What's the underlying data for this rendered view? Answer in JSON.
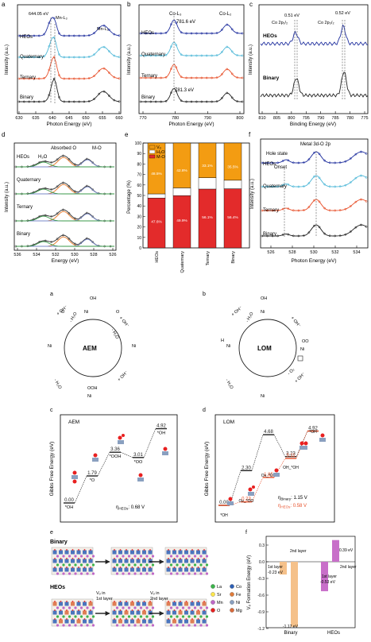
{
  "colors": {
    "heo": "#1f2f9e",
    "quaternary": "#4fb8d8",
    "ternary": "#e8502a",
    "binary": "#222222",
    "vo": "#f39c12",
    "h2o": "#ffffff",
    "mo": "#e32b2b",
    "mech_black": "#222222",
    "mech_orange": "#e8502a"
  },
  "panel_a": {
    "letter": "a",
    "xlabel": "Photon Energy (eV)",
    "ylabel": "Intensity (a.u.)",
    "xlim": [
      630,
      660
    ],
    "xticks": [
      "630",
      "635",
      "640",
      "645",
      "650",
      "655",
      "660"
    ],
    "annotations": {
      "peak": "644.05 eV",
      "l3": "Mn-L₃",
      "l2": "Mn-L₂"
    },
    "labels": [
      "HEOs",
      "Quaternary",
      "Ternary",
      "Binary"
    ]
  },
  "panel_b": {
    "letter": "b",
    "xlabel": "Photon Energy (eV)",
    "ylabel": "Intensity (a.u.)",
    "xlim": [
      770,
      800
    ],
    "xticks": [
      "770",
      "780",
      "790",
      "800"
    ],
    "annotations": {
      "l3": "Co-L₃",
      "l2": "Co-L₂",
      "heo_peak": "781.6 eV",
      "bin_peak": "781.3 eV"
    },
    "labels": [
      "HEOs",
      "Quaternary",
      "Ternary",
      "Binary"
    ]
  },
  "panel_c": {
    "letter": "c",
    "xlabel": "Binding Energy (eV)",
    "ylabel": "Intensity (a.u.)",
    "xlim": [
      810,
      775
    ],
    "xticks": [
      "810",
      "805",
      "800",
      "795",
      "790",
      "785",
      "780",
      "775"
    ],
    "annotations": {
      "s1": "0.51 eV",
      "s2": "0.52 eV",
      "p1": "Co 2p₁/₂",
      "p2": "Co 2p₃/₂"
    },
    "labels": [
      "HEOs",
      "Binary"
    ]
  },
  "panel_d": {
    "letter": "d",
    "xlabel": "Energy (eV)",
    "ylabel": "Intensity (a.u.)",
    "xlim": [
      536,
      526
    ],
    "xticks": [
      "536",
      "534",
      "532",
      "530",
      "528",
      "526"
    ],
    "annotations": {
      "ao": "Absorbed O",
      "mo": "M-O",
      "h2o": "H₂O"
    },
    "labels": [
      "HEOs",
      "Quaternary",
      "Ternary",
      "Binary"
    ]
  },
  "panel_e": {
    "letter": "e",
    "ylabel": "Percentage (%)",
    "yticks": [
      "0",
      "10",
      "20",
      "30",
      "40",
      "50",
      "60",
      "70",
      "80",
      "90",
      "100"
    ],
    "legend": [
      "Vₒ",
      "H₂O",
      "M-O"
    ]
  },
  "panel_f": {
    "letter": "f",
    "xlabel": "Photon Energy (eV)",
    "ylabel": "Intensity (a.u.)",
    "xlim": [
      525,
      535
    ],
    "xticks": [
      "526",
      "528",
      "530",
      "532",
      "534"
    ],
    "annotations": {
      "main": "Metal 3d-O 2p",
      "hole": "Hole state",
      "onset": "Onset"
    },
    "labels": [
      "HEOs",
      "Quaternary",
      "Ternary",
      "Binary"
    ]
  },
  "chart_data": [
    {
      "type": "line",
      "title": "",
      "xlabel": "Photon Energy (eV)",
      "ylabel": "Intensity (a.u.)",
      "xlim": [
        630,
        660
      ],
      "series": [
        {
          "name": "HEOs"
        },
        {
          "name": "Quaternary"
        },
        {
          "name": "Ternary"
        },
        {
          "name": "Binary"
        }
      ],
      "peaks": {
        "Mn-L3": 644.05,
        "Mn-L2": 655
      }
    },
    {
      "type": "line",
      "title": "",
      "xlabel": "Photon Energy (eV)",
      "ylabel": "Intensity (a.u.)",
      "xlim": [
        770,
        800
      ],
      "series": [
        {
          "name": "HEOs"
        },
        {
          "name": "Quaternary"
        },
        {
          "name": "Ternary"
        },
        {
          "name": "Binary"
        }
      ],
      "peaks": {
        "HEOs Co-L3": 781.6,
        "Binary Co-L3": 781.3,
        "Co-L2": 796
      }
    },
    {
      "type": "line",
      "title": "",
      "xlabel": "Binding Energy (eV)",
      "ylabel": "Intensity (a.u.)",
      "xlim": [
        810,
        775
      ],
      "series": [
        {
          "name": "HEOs"
        },
        {
          "name": "Binary"
        }
      ],
      "shifts": {
        "Co 2p1/2": 0.51,
        "Co 2p3/2": 0.52
      }
    },
    {
      "type": "line",
      "title": "",
      "xlabel": "Energy (eV)",
      "ylabel": "Intensity (a.u.)",
      "xlim": [
        536,
        526
      ],
      "series": [
        {
          "name": "HEOs"
        },
        {
          "name": "Quaternary"
        },
        {
          "name": "Ternary"
        },
        {
          "name": "Binary"
        }
      ],
      "components": {
        "H2O": 533.2,
        "Absorbed O": 531.5,
        "M-O": 529.3
      }
    },
    {
      "type": "bar",
      "title": "",
      "ylabel": "Percentage (%)",
      "ylim": [
        0,
        100
      ],
      "categories": [
        "HEOs",
        "Quaternary",
        "Ternary",
        "Binary"
      ],
      "series": [
        {
          "name": "M-O",
          "values": [
            47.6,
            49.9,
            56.1,
            56.4
          ],
          "labels": [
            "47.6%",
            "49.9%",
            "56.1%",
            "56.4%"
          ]
        },
        {
          "name": "H2O",
          "values": [
            3.9,
            7.3,
            10.8,
            8.1
          ]
        },
        {
          "name": "Vo",
          "values": [
            48.5,
            42.8,
            33.1,
            35.5
          ],
          "labels": [
            "48.5%",
            "42.8%",
            "33.1%",
            "35.5%"
          ]
        }
      ]
    },
    {
      "type": "line",
      "title": "",
      "xlabel": "Photon Energy (eV)",
      "ylabel": "Intensity (a.u.)",
      "xlim": [
        525,
        535
      ],
      "series": [
        {
          "name": "HEOs"
        },
        {
          "name": "Quaternary"
        },
        {
          "name": "Ternary"
        },
        {
          "name": "Binary"
        }
      ],
      "markers": {
        "Metal 3d-O 2p": 530.2,
        "Onset": 528.2
      }
    },
    {
      "type": "line",
      "title": "",
      "ylabel": "Gibbs Free Energy (eV)",
      "x": [
        "*OH",
        "*O",
        "*OOH",
        "*OO",
        "*OH"
      ],
      "values": [
        0.0,
        1.79,
        3.36,
        3.01,
        4.92
      ],
      "value_labels": [
        "0.00",
        "1.79",
        "3.36",
        "3.01",
        "4.92"
      ],
      "annotation": "η HEOs : 0.68 V"
    },
    {
      "type": "line",
      "title": "",
      "ylabel": "Gibbs Free Energy (eV)",
      "x": [
        "*OH",
        "Ov_*OO",
        "Ov_*OH",
        "OH_*OH",
        "*OH"
      ],
      "series": [
        {
          "name": "Binary",
          "values": [
            0.0,
            2.3,
            4.68,
            3.23,
            4.92
          ]
        },
        {
          "name": "HEOs",
          "values": [
            0.0,
            0.23,
            1.85,
            3.11,
            4.92
          ]
        }
      ],
      "value_labels": [
        "0.00",
        "2.30",
        "4.68",
        "3.23",
        "4.92",
        "0.23",
        "1.85",
        "3.11"
      ],
      "annotation": [
        "η Binary : 1.15 V",
        "η HEOs : 0.58 V"
      ]
    },
    {
      "type": "bar",
      "title": "",
      "ylabel": "Vₒ Formation Energy (eV)",
      "ylim": [
        -1.3,
        0.5
      ],
      "categories": [
        "Binary",
        "HEOs"
      ],
      "series": [
        {
          "name": "1st layer",
          "values": [
            -0.23,
            -0.53
          ]
        },
        {
          "name": "2nd layer",
          "values": [
            -1.17,
            0.39
          ]
        }
      ],
      "value_labels": [
        "-0.23 eV",
        "-1.17 eV",
        "-0.53 eV",
        "0.39 eV"
      ]
    }
  ],
  "mechanism": {
    "a": {
      "letter": "a",
      "title": "AEM",
      "plus_oh": "+ OH⁻",
      "minus_h2o": "- H₂O",
      "species": [
        "O",
        "Ni",
        "O",
        "OH",
        "OOH"
      ]
    },
    "b": {
      "letter": "b",
      "title": "LOM",
      "plus_oh": "+ OH⁻",
      "minus_h2o": "- H₂O",
      "minus_o2": "- O₂",
      "species": [
        "O",
        "Ni",
        "OO",
        "H",
        "OH"
      ]
    }
  },
  "energy_c": {
    "letter": "c",
    "label": "AEM",
    "ylabel": "Gibbs Free Energy (eV)",
    "species": [
      "*OH",
      "*O",
      "*OOH",
      "*OO",
      "*OH"
    ],
    "eta": "η",
    "eta_sub": "HEOs",
    "eta_val": ": 0.68 V"
  },
  "energy_d": {
    "letter": "d",
    "label": "LOM",
    "ylabel": "Gibbs Free Energy (eV)",
    "species": [
      "*OH",
      "Ov_*OO",
      "Ov_*OH",
      "OH_*OH",
      "*OH"
    ],
    "eta1": "η",
    "eta1_sub": "Binary",
    "eta1_val": ": 1.15 V",
    "eta2_sub": "HEOs",
    "eta2_val": ": 0.58 V"
  },
  "structures": {
    "letter": "e",
    "binary": "Binary",
    "heos": "HEOs",
    "vo1": "Vₒ in",
    "vo1b": "1st layer",
    "vo2": "Vₒ in",
    "vo2b": "2nd layer",
    "legend": [
      "La",
      "Co",
      "Sr",
      "Fe",
      "Mn",
      "Ni",
      "O",
      "Mg"
    ],
    "legend_colors": [
      "#3cb44b",
      "#2d5fb5",
      "#ffe74c",
      "#e07b39",
      "#c068c8",
      "#8aa0c0",
      "#e82020",
      "#d96a3a"
    ]
  },
  "panel_f2": {
    "letter": "f",
    "ylabel": "Vₒ Formation Energy (eV)",
    "yticks": [
      "0.3",
      "0.0",
      "-0.3",
      "-0.6",
      "-0.9",
      "-1.2"
    ],
    "cats": [
      "Binary",
      "HEOs"
    ],
    "layer1": "1st layer",
    "layer2": "2nd layer",
    "lab1": "-0.23 eV",
    "lab2": "-1.17 eV",
    "lab3": "-0.53 eV",
    "lab4": "0.39 eV"
  }
}
